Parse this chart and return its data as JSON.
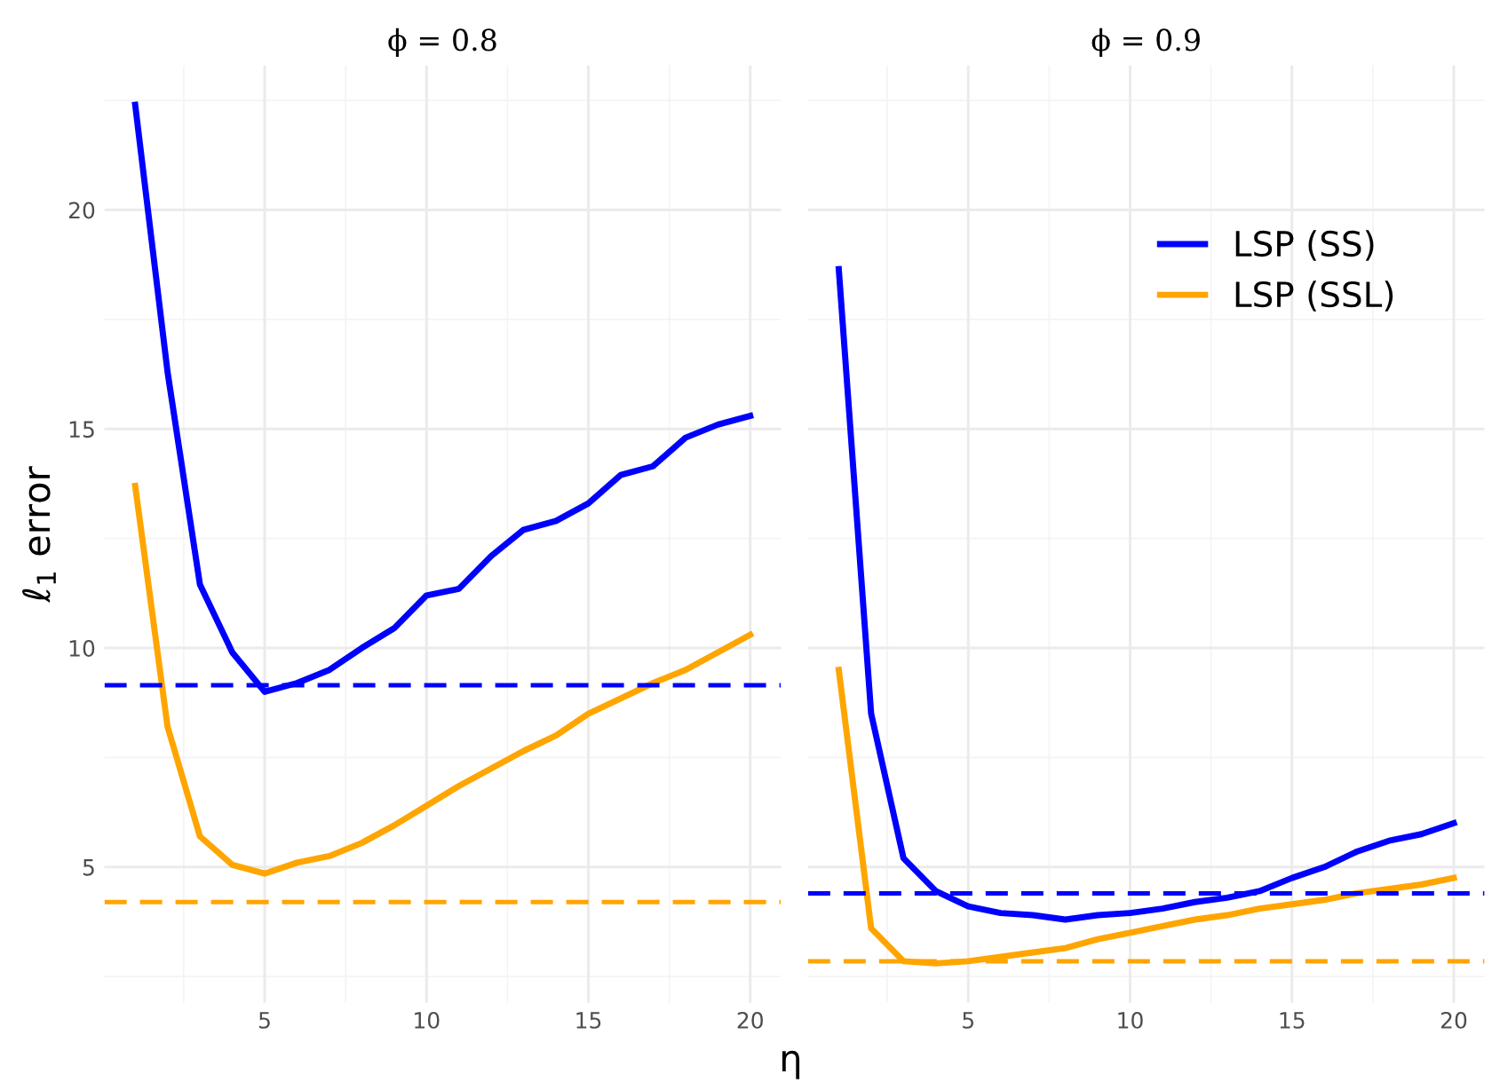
{
  "chart_data": [
    {
      "type": "line",
      "title": "ϕ = 0.8",
      "xlabel": "η",
      "ylabel": "ℓ$_{1}$ error",
      "x": [
        1,
        2,
        3,
        4,
        5,
        6,
        7,
        8,
        9,
        10,
        11,
        12,
        13,
        14,
        15,
        16,
        17,
        18,
        19,
        20
      ],
      "xlim": [
        0.05,
        20.95
      ],
      "xticks": [
        5,
        10,
        15,
        20
      ],
      "ylim": [
        1.9,
        23.3
      ],
      "yticks": [
        5,
        10,
        15,
        20
      ],
      "grid": true,
      "legend": false,
      "series": [
        {
          "color": "#0000ff",
          "values": [
            22.4,
            16.3,
            11.45,
            9.9,
            9.0,
            9.2,
            9.5,
            10.0,
            10.45,
            11.2,
            11.35,
            12.1,
            12.7,
            12.9,
            13.3,
            13.95,
            14.15,
            14.8,
            15.1,
            15.3
          ]
        },
        {
          "color": "#ffa500",
          "values": [
            13.7,
            8.2,
            5.7,
            5.05,
            4.85,
            5.1,
            5.25,
            5.55,
            5.95,
            6.4,
            6.85,
            7.25,
            7.65,
            8.0,
            8.5,
            8.85,
            9.2,
            9.5,
            9.9,
            10.3
          ]
        }
      ],
      "ref_lines": [
        {
          "axis": "y",
          "value": 9.15,
          "color": "#0000ff",
          "line_style": "dashed"
        },
        {
          "axis": "y",
          "value": 4.2,
          "color": "#ffa500",
          "line_style": "dashed"
        }
      ]
    },
    {
      "type": "line",
      "title": "ϕ = 0.9",
      "x": [
        1,
        2,
        3,
        4,
        5,
        6,
        7,
        8,
        9,
        10,
        11,
        12,
        13,
        14,
        15,
        16,
        17,
        18,
        19,
        20
      ],
      "xlim": [
        0.05,
        20.95
      ],
      "xticks": [
        5,
        10,
        15,
        20
      ],
      "ylim": [
        1.9,
        23.3
      ],
      "tick_labels": "x",
      "grid": true,
      "legend": "top right",
      "series": [
        {
          "name": "LSP (SS)",
          "color": "#0000ff",
          "values": [
            18.65,
            8.5,
            5.2,
            4.45,
            4.1,
            3.95,
            3.9,
            3.8,
            3.9,
            3.95,
            4.05,
            4.2,
            4.3,
            4.45,
            4.75,
            5.0,
            5.35,
            5.6,
            5.75,
            6.0
          ]
        },
        {
          "name": "LSP (SSL)",
          "color": "#ffa500",
          "values": [
            9.5,
            3.6,
            2.85,
            2.8,
            2.85,
            2.95,
            3.05,
            3.15,
            3.35,
            3.5,
            3.65,
            3.8,
            3.9,
            4.05,
            4.15,
            4.25,
            4.4,
            4.5,
            4.6,
            4.75
          ]
        }
      ],
      "ref_lines": [
        {
          "axis": "y",
          "value": 4.4,
          "color": "#0000ff",
          "line_style": "dashed"
        },
        {
          "axis": "y",
          "value": 2.85,
          "color": "#ffa500",
          "line_style": "dashed"
        }
      ]
    }
  ]
}
